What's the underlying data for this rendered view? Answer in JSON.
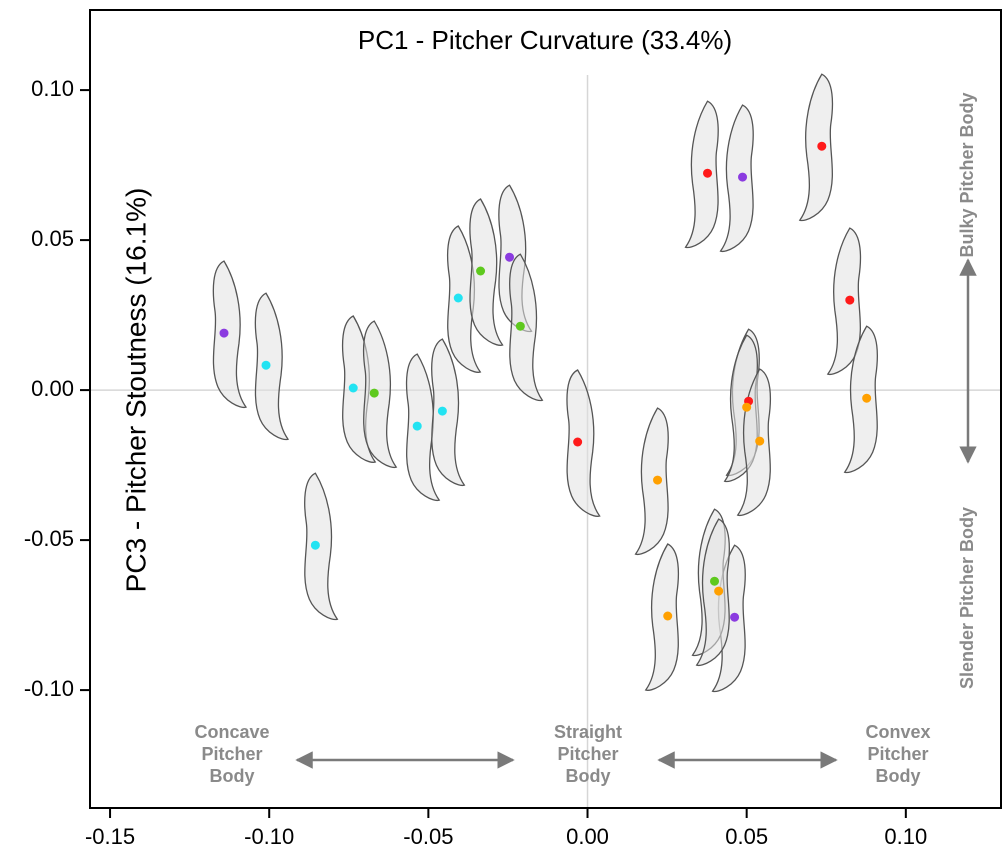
{
  "chart_data": {
    "type": "scatter",
    "title": "PC1 - Pitcher Curvature (33.4%)",
    "y_label": "PC3 - Pitcher Stoutness  (16.1%)",
    "xlim": [
      -0.1563,
      0.1299
    ],
    "ylim": [
      -0.1393,
      0.1267
    ],
    "xticks": [
      -0.15,
      {
        "value": -0.1,
        "label": "-0.10"
      },
      -0.05,
      {
        "value": 0,
        "label": "0.00"
      },
      0.05,
      {
        "value": 0.1,
        "label": "0.10"
      }
    ],
    "yticks": [
      {
        "value": -0.1,
        "label": "-0.10"
      },
      -0.05,
      {
        "value": 0,
        "label": "0.00"
      },
      0.05,
      {
        "value": 0.1,
        "label": "0.10"
      }
    ],
    "hlines": [
      0
    ],
    "vlines": [
      0
    ],
    "series": [
      {
        "color": "#8b3be0",
        "x": [
          -0.1142,
          -0.0245,
          0.0487,
          0.0462
        ],
        "y": [
          0.019,
          0.0443,
          0.071,
          -0.0757
        ]
      },
      {
        "color": "#22e3f2",
        "x": [
          -0.101,
          -0.0736,
          -0.0535,
          -0.0456,
          -0.0855,
          -0.0406
        ],
        "y": [
          0.0083,
          0.0007,
          -0.012,
          -0.007,
          -0.0517,
          0.0307
        ]
      },
      {
        "color": "#5ec91e",
        "x": [
          -0.067,
          -0.0336,
          -0.0211,
          0.0399
        ],
        "y": [
          -0.001,
          0.0397,
          0.0213,
          -0.0637
        ]
      },
      {
        "color": "#ff1a1a",
        "x": [
          -0.0031,
          0.0377,
          0.0736,
          0.0824,
          0.0506
        ],
        "y": [
          -0.0173,
          0.0723,
          0.0813,
          0.03,
          -0.0037
        ]
      },
      {
        "color": "#ffa000",
        "x": [
          0.0877,
          0.05,
          0.0541,
          0.022,
          0.0252,
          0.0412
        ],
        "y": [
          -0.0027,
          -0.0057,
          -0.017,
          -0.03,
          -0.0753,
          -0.067
        ]
      }
    ],
    "annotations": [
      {
        "lines": [
          "Concave",
          "Pitcher",
          "Body"
        ]
      },
      {
        "lines": [
          "Straight",
          "Pitcher",
          "Body"
        ]
      },
      {
        "lines": [
          "Convex",
          "Pitcher",
          "Body"
        ]
      },
      {
        "lines": [
          "Bulky Pitcher Body"
        ]
      },
      {
        "lines": [
          "Slender Pitcher Body"
        ]
      }
    ]
  }
}
